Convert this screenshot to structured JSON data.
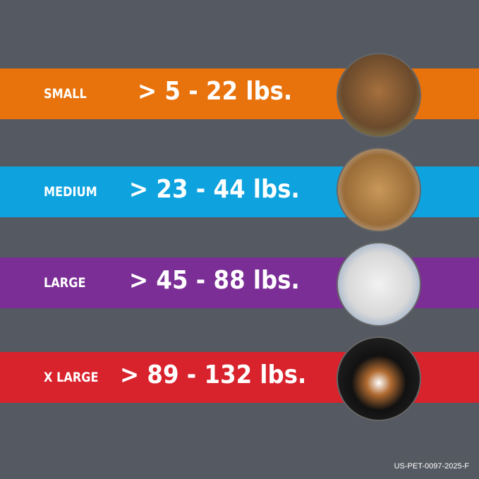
{
  "sizes": [
    {
      "label": "SMALL",
      "range": "> 5 - 22 lbs.",
      "color": "#e8720c"
    },
    {
      "label": "MEDIUM",
      "range": "> 23 - 44 lbs.",
      "color": "#0ea3de"
    },
    {
      "label": "LARGE",
      "range": "> 45 - 88 lbs.",
      "color": "#7b2e96"
    },
    {
      "label": "X LARGE",
      "range": "> 89 - 132 lbs.",
      "color": "#d8222c"
    }
  ],
  "code": "US-PET-0097-2025-F"
}
